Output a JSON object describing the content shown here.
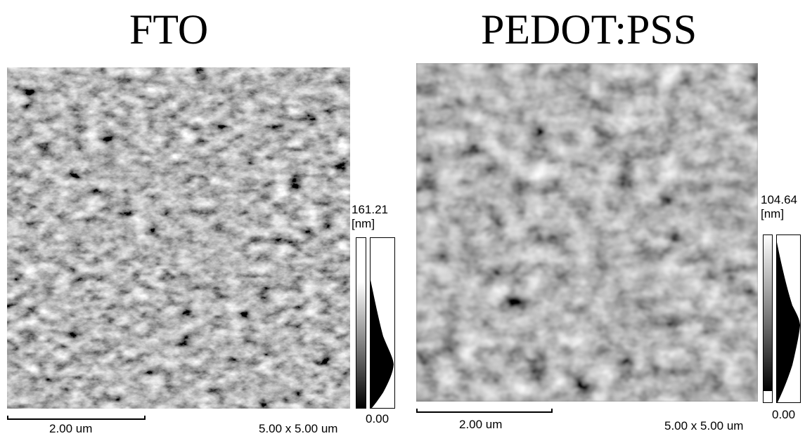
{
  "panels": [
    {
      "title": "FTO",
      "z_max": "161.21",
      "z_unit": "[nm]",
      "z_min": "0.00",
      "scale_bar_label": "2.00 um",
      "scan_size": "5.00 x 5.00 um",
      "texture": "granular crystalline grains with sharp facets"
    },
    {
      "title": "PEDOT:PSS",
      "z_max": "104.64",
      "z_unit": "[nm]",
      "z_min": "0.00",
      "scale_bar_label": "2.00 um",
      "scan_size": "5.00 x 5.00 um",
      "texture": "smoother blurred grains"
    }
  ]
}
